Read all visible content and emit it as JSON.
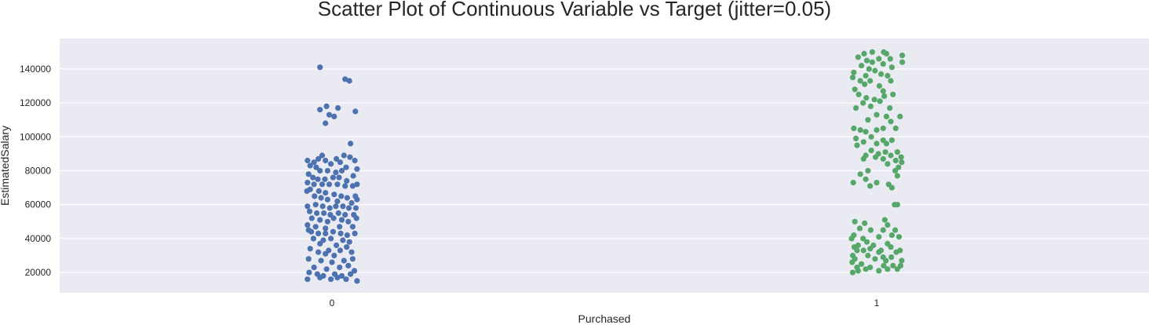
{
  "chart_data": {
    "type": "scatter",
    "title": "Scatter Plot of Continuous Variable vs Target (jitter=0.05)",
    "xlabel": "Purchased",
    "ylabel": "EstimatedSalary",
    "categories": [
      "0",
      "1"
    ],
    "ylim": [
      8000,
      158000
    ],
    "yticks": [
      20000,
      40000,
      60000,
      80000,
      100000,
      120000,
      140000
    ],
    "ytick_labels": [
      "20000",
      "40000",
      "60000",
      "80000",
      "100000",
      "120000",
      "140000"
    ],
    "grid": true,
    "background": "#eaeaf2",
    "series": [
      {
        "category": "0",
        "color": "#4c72b0",
        "points": [
          [
            -0.022,
            141000
          ],
          [
            0.024,
            134000
          ],
          [
            0.032,
            133000
          ],
          [
            -0.01,
            118000
          ],
          [
            0.011,
            117000
          ],
          [
            -0.022,
            116000
          ],
          [
            -0.005,
            113000
          ],
          [
            0.004,
            112000
          ],
          [
            0.043,
            115000
          ],
          [
            -0.012,
            108000
          ],
          [
            0.034,
            96000
          ],
          [
            -0.045,
            86000
          ],
          [
            -0.033,
            85000
          ],
          [
            -0.025,
            87000
          ],
          [
            -0.018,
            89000
          ],
          [
            -0.04,
            83000
          ],
          [
            -0.029,
            82000
          ],
          [
            -0.012,
            86000
          ],
          [
            -0.002,
            84000
          ],
          [
            0.008,
            87000
          ],
          [
            0.015,
            85000
          ],
          [
            0.022,
            89000
          ],
          [
            0.033,
            88000
          ],
          [
            0.042,
            86000
          ],
          [
            0.046,
            81000
          ],
          [
            0.026,
            82000
          ],
          [
            0.018,
            80000
          ],
          [
            0.007,
            79000
          ],
          [
            -0.008,
            80000
          ],
          [
            -0.022,
            80000
          ],
          [
            -0.043,
            78000
          ],
          [
            -0.035,
            76000
          ],
          [
            -0.026,
            75000
          ],
          [
            -0.013,
            75000
          ],
          [
            0.002,
            76000
          ],
          [
            0.013,
            76000
          ],
          [
            0.027,
            74000
          ],
          [
            0.039,
            77000
          ],
          [
            0.046,
            72000
          ],
          [
            -0.045,
            73000
          ],
          [
            -0.033,
            72000
          ],
          [
            -0.018,
            72000
          ],
          [
            -0.005,
            72000
          ],
          [
            0.01,
            72000
          ],
          [
            0.024,
            71000
          ],
          [
            0.038,
            71000
          ],
          [
            -0.04,
            69000
          ],
          [
            -0.024,
            68000
          ],
          [
            -0.012,
            67000
          ],
          [
            0.004,
            66000
          ],
          [
            0.017,
            65000
          ],
          [
            0.028,
            64000
          ],
          [
            0.043,
            65000
          ],
          [
            -0.046,
            68000
          ],
          [
            -0.032,
            65000
          ],
          [
            -0.02,
            64000
          ],
          [
            -0.008,
            63000
          ],
          [
            0.01,
            62000
          ],
          [
            0.036,
            61000
          ],
          [
            0.046,
            63000
          ],
          [
            -0.045,
            59000
          ],
          [
            -0.03,
            60000
          ],
          [
            -0.017,
            59000
          ],
          [
            -0.004,
            58000
          ],
          [
            0.007,
            59000
          ],
          [
            0.02,
            59000
          ],
          [
            0.031,
            58000
          ],
          [
            0.044,
            58000
          ],
          [
            -0.041,
            56000
          ],
          [
            -0.028,
            55000
          ],
          [
            -0.015,
            55000
          ],
          [
            -0.003,
            54000
          ],
          [
            0.012,
            55000
          ],
          [
            0.024,
            54000
          ],
          [
            0.04,
            54000
          ],
          [
            -0.037,
            52000
          ],
          [
            -0.022,
            51000
          ],
          [
            -0.008,
            50000
          ],
          [
            0.003,
            52000
          ],
          [
            0.018,
            51000
          ],
          [
            0.03,
            50000
          ],
          [
            0.045,
            52000
          ],
          [
            -0.045,
            48000
          ],
          [
            -0.03,
            47000
          ],
          [
            -0.012,
            46000
          ],
          [
            0.014,
            47000
          ],
          [
            0.038,
            47000
          ],
          [
            -0.043,
            45000
          ],
          [
            -0.038,
            44000
          ],
          [
            -0.025,
            43000
          ],
          [
            -0.012,
            43000
          ],
          [
            0.002,
            44000
          ],
          [
            0.016,
            43000
          ],
          [
            0.028,
            42000
          ],
          [
            0.042,
            43000
          ],
          [
            -0.034,
            40000
          ],
          [
            -0.016,
            39000
          ],
          [
            -0.002,
            40000
          ],
          [
            0.02,
            39000
          ],
          [
            0.032,
            38000
          ],
          [
            -0.022,
            37000
          ],
          [
            0.008,
            36000
          ],
          [
            0.027,
            35000
          ],
          [
            -0.04,
            34000
          ],
          [
            -0.006,
            33000
          ],
          [
            0.015,
            33000
          ],
          [
            0.036,
            32000
          ],
          [
            -0.025,
            32000
          ],
          [
            -0.012,
            31000
          ],
          [
            0.004,
            30000
          ],
          [
            -0.043,
            28000
          ],
          [
            -0.02,
            27000
          ],
          [
            0.0,
            26000
          ],
          [
            0.022,
            27000
          ],
          [
            0.038,
            28000
          ],
          [
            -0.033,
            23000
          ],
          [
            -0.01,
            22000
          ],
          [
            0.014,
            23000
          ],
          [
            0.03,
            24000
          ],
          [
            -0.042,
            20000
          ],
          [
            -0.027,
            19000
          ],
          [
            -0.016,
            18000
          ],
          [
            0.005,
            19000
          ],
          [
            0.018,
            18000
          ],
          [
            0.034,
            19000
          ],
          [
            0.041,
            21000
          ],
          [
            -0.045,
            16000
          ],
          [
            -0.022,
            17000
          ],
          [
            -0.002,
            16000
          ],
          [
            0.01,
            17000
          ],
          [
            0.026,
            16000
          ],
          [
            0.046,
            15000
          ]
        ]
      },
      {
        "category": "1",
        "color": "#55a868",
        "points": [
          [
            -0.023,
            149000
          ],
          [
            -0.008,
            150000
          ],
          [
            0.013,
            150000
          ],
          [
            0.018,
            149000
          ],
          [
            0.047,
            148000
          ],
          [
            -0.034,
            147000
          ],
          [
            0.004,
            146000
          ],
          [
            -0.018,
            145000
          ],
          [
            0.025,
            146000
          ],
          [
            0.047,
            144000
          ],
          [
            -0.008,
            144000
          ],
          [
            -0.028,
            142000
          ],
          [
            0.012,
            143000
          ],
          [
            0.028,
            141000
          ],
          [
            -0.014,
            140000
          ],
          [
            -0.042,
            138000
          ],
          [
            -0.003,
            139000
          ],
          [
            0.008,
            137000
          ],
          [
            -0.02,
            136000
          ],
          [
            0.02,
            136000
          ],
          [
            -0.044,
            135000
          ],
          [
            -0.03,
            133000
          ],
          [
            -0.012,
            133000
          ],
          [
            0.026,
            133000
          ],
          [
            -0.022,
            131000
          ],
          [
            0.005,
            130000
          ],
          [
            -0.04,
            128000
          ],
          [
            0.012,
            127000
          ],
          [
            -0.033,
            125000
          ],
          [
            0.014,
            124000
          ],
          [
            0.03,
            125000
          ],
          [
            -0.019,
            123000
          ],
          [
            -0.004,
            122000
          ],
          [
            0.006,
            121000
          ],
          [
            -0.025,
            120000
          ],
          [
            -0.011,
            118000
          ],
          [
            0.024,
            117000
          ],
          [
            -0.038,
            117000
          ],
          [
            0.0,
            113000
          ],
          [
            0.018,
            112000
          ],
          [
            0.043,
            112000
          ],
          [
            -0.016,
            110000
          ],
          [
            0.026,
            109000
          ],
          [
            -0.042,
            105000
          ],
          [
            -0.03,
            104000
          ],
          [
            -0.02,
            103000
          ],
          [
            0.0,
            104000
          ],
          [
            0.012,
            105000
          ],
          [
            0.035,
            105000
          ],
          [
            -0.038,
            99000
          ],
          [
            -0.01,
            100000
          ],
          [
            0.012,
            98000
          ],
          [
            -0.024,
            97000
          ],
          [
            0.0,
            96000
          ],
          [
            0.018,
            96000
          ],
          [
            0.028,
            98000
          ],
          [
            -0.036,
            95000
          ],
          [
            -0.01,
            92000
          ],
          [
            0.016,
            91000
          ],
          [
            0.038,
            91000
          ],
          [
            -0.02,
            89000
          ],
          [
            0.003,
            90000
          ],
          [
            0.026,
            89000
          ],
          [
            0.045,
            88000
          ],
          [
            -0.024,
            87000
          ],
          [
            -0.002,
            88000
          ],
          [
            0.012,
            87000
          ],
          [
            0.035,
            86000
          ],
          [
            0.046,
            85000
          ],
          [
            0.02,
            84000
          ],
          [
            0.04,
            82000
          ],
          [
            -0.016,
            80000
          ],
          [
            0.034,
            80000
          ],
          [
            -0.03,
            78000
          ],
          [
            0.038,
            77000
          ],
          [
            -0.02,
            75000
          ],
          [
            -0.043,
            73000
          ],
          [
            0.0,
            73000
          ],
          [
            0.022,
            72000
          ],
          [
            -0.012,
            71000
          ],
          [
            0.028,
            70000
          ],
          [
            0.033,
            60000
          ],
          [
            0.038,
            60000
          ],
          [
            0.015,
            51000
          ],
          [
            -0.04,
            50000
          ],
          [
            -0.022,
            49000
          ],
          [
            0.02,
            48000
          ],
          [
            -0.031,
            46000
          ],
          [
            -0.011,
            45000
          ],
          [
            0.012,
            45000
          ],
          [
            0.034,
            45000
          ],
          [
            -0.042,
            42000
          ],
          [
            0.028,
            42000
          ],
          [
            -0.046,
            40000
          ],
          [
            -0.025,
            40000
          ],
          [
            0.004,
            41000
          ],
          [
            0.041,
            41000
          ],
          [
            -0.018,
            38000
          ],
          [
            0.02,
            37000
          ],
          [
            -0.034,
            36000
          ],
          [
            -0.006,
            36000
          ],
          [
            0.026,
            35000
          ],
          [
            -0.041,
            35000
          ],
          [
            -0.012,
            34000
          ],
          [
            0.008,
            33000
          ],
          [
            0.043,
            33000
          ],
          [
            -0.036,
            33000
          ],
          [
            -0.024,
            33000
          ],
          [
            0.004,
            32000
          ],
          [
            0.036,
            32000
          ],
          [
            -0.044,
            30000
          ],
          [
            -0.016,
            30000
          ],
          [
            0.012,
            29000
          ],
          [
            0.027,
            29000
          ],
          [
            -0.04,
            28000
          ],
          [
            -0.003,
            28000
          ],
          [
            0.017,
            27000
          ],
          [
            0.046,
            27000
          ],
          [
            -0.045,
            26000
          ],
          [
            -0.028,
            25000
          ],
          [
            0.03,
            24000
          ],
          [
            0.044,
            24000
          ],
          [
            -0.036,
            23000
          ],
          [
            -0.012,
            23000
          ],
          [
            0.013,
            24000
          ],
          [
            -0.044,
            20000
          ],
          [
            -0.034,
            21000
          ],
          [
            -0.02,
            22000
          ],
          [
            0.004,
            21000
          ],
          [
            0.02,
            22000
          ],
          [
            0.038,
            22000
          ]
        ]
      }
    ]
  }
}
